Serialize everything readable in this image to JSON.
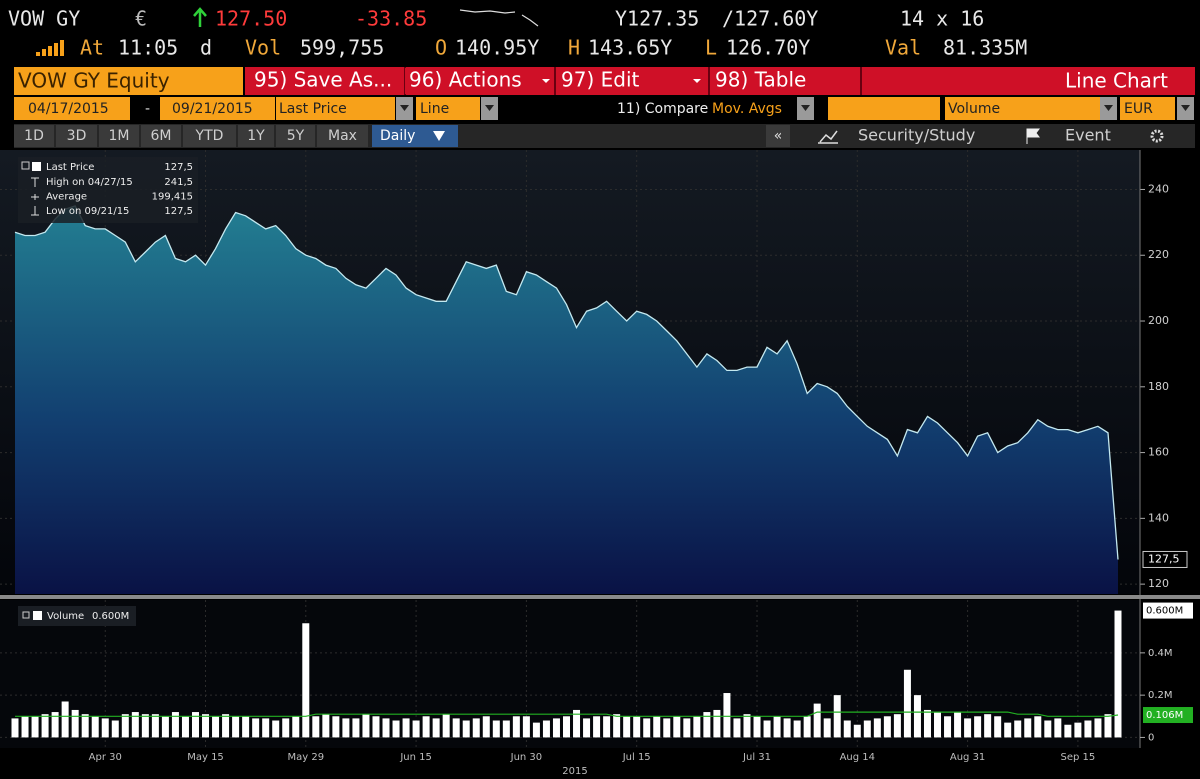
{
  "header": {
    "ticker": "VOW GY",
    "currency": "€",
    "last": "127.50",
    "change": "-33.85",
    "bid": "Y127.35",
    "ask": "/127.60Y",
    "size": "14 x 16",
    "time_label": "At",
    "time": "11:05",
    "time_suffix": "d",
    "vol_label": "Vol",
    "vol": "599,755",
    "open_label": "O",
    "open": "140.95Y",
    "high_label": "H",
    "high": "143.65Y",
    "low_label": "L",
    "low": "126.70Y",
    "val_label": "Val",
    "val": "81.335M"
  },
  "toolbar": {
    "security": "VOW GY Equity",
    "buttons": [
      "95) Save As...",
      "96) Actions",
      "97) Edit",
      "98) Table"
    ],
    "view": "Line Chart"
  },
  "settings": {
    "start": "04/17/2015",
    "dash": "-",
    "end": "09/21/2015",
    "field": "Last Price",
    "style": "Line",
    "compare": "11) Compare",
    "mov_avgs": "Mov. Avgs",
    "lower": "Volume",
    "currency": "EUR"
  },
  "periods": {
    "buttons": [
      "1D",
      "3D",
      "1M",
      "6M",
      "YTD",
      "1Y",
      "5Y",
      "Max"
    ],
    "frequency": "Daily",
    "collapse": "«",
    "study": "Security/Study",
    "event": "Event"
  },
  "chart_data": [
    {
      "type": "area",
      "series": [
        {
          "name": "Last Price",
          "color": "#c4e9f0",
          "last": "127,5",
          "values": [
            227,
            226,
            226,
            227,
            231,
            234,
            235,
            229,
            228,
            228,
            226,
            224,
            218,
            221,
            224,
            226,
            219,
            218,
            220,
            217,
            222,
            228,
            233,
            232,
            230,
            228,
            229,
            226,
            222,
            220,
            219,
            217,
            216,
            213,
            211,
            210,
            213,
            216,
            214,
            210,
            208,
            207,
            206,
            206,
            212,
            218,
            217,
            216,
            217,
            209,
            208,
            215,
            214,
            212,
            210,
            205,
            198,
            203,
            204,
            206,
            203,
            200,
            203,
            202,
            200,
            197,
            194,
            190,
            186,
            190,
            188,
            185,
            185,
            186,
            186,
            192,
            190,
            194,
            187,
            178,
            181,
            180,
            178,
            174,
            171,
            168,
            166,
            164,
            159,
            167,
            166,
            171,
            169,
            166,
            163,
            159,
            165,
            166,
            160,
            162,
            163,
            166,
            170,
            168,
            167,
            167,
            166,
            167,
            168,
            166,
            127.5
          ]
        }
      ],
      "stats": [
        {
          "label": "High on 04/27/15",
          "value": "241,5"
        },
        {
          "label": "Average",
          "value": "199,415"
        },
        {
          "label": "Low on 09/21/15",
          "value": "127,5"
        }
      ],
      "ylim": [
        117,
        252
      ],
      "yticks": [
        120,
        140,
        160,
        180,
        200,
        220,
        240
      ],
      "grid": true
    },
    {
      "type": "bar",
      "categories": [
        null,
        null,
        null,
        null,
        null,
        null,
        null,
        null,
        null,
        "Apr 30",
        null,
        null,
        null,
        null,
        null,
        null,
        null,
        null,
        null,
        "May 15",
        null,
        null,
        null,
        null,
        null,
        null,
        null,
        null,
        null,
        "May 29",
        null,
        null,
        null,
        null,
        null,
        null,
        null,
        null,
        null,
        null,
        "Jun 15",
        null,
        null,
        null,
        null,
        null,
        null,
        null,
        null,
        null,
        null,
        "Jun 30",
        null,
        null,
        null,
        null,
        null,
        null,
        null,
        null,
        null,
        null,
        "Jul 15",
        null,
        null,
        null,
        null,
        null,
        null,
        null,
        null,
        null,
        null,
        null,
        "Jul 31",
        null,
        null,
        null,
        null,
        null,
        null,
        null,
        null,
        null,
        "Aug 14",
        null,
        null,
        null,
        null,
        null,
        null,
        null,
        null,
        null,
        null,
        "Aug 31",
        null,
        null,
        null,
        null,
        null,
        null,
        null,
        null,
        null,
        null,
        "Sep 15",
        null,
        null,
        null,
        null
      ],
      "x_year": "2015",
      "series": [
        {
          "name": "Volume",
          "color": "#ffffff",
          "last": "0.600M",
          "values": [
            0.09,
            0.1,
            0.1,
            0.11,
            0.12,
            0.17,
            0.13,
            0.11,
            0.1,
            0.09,
            0.08,
            0.11,
            0.12,
            0.11,
            0.11,
            0.1,
            0.12,
            0.1,
            0.12,
            0.11,
            0.1,
            0.11,
            0.1,
            0.1,
            0.09,
            0.09,
            0.08,
            0.09,
            0.1,
            0.54,
            0.1,
            0.11,
            0.1,
            0.09,
            0.09,
            0.11,
            0.1,
            0.09,
            0.08,
            0.09,
            0.08,
            0.1,
            0.09,
            0.11,
            0.09,
            0.08,
            0.09,
            0.1,
            0.08,
            0.08,
            0.1,
            0.1,
            0.07,
            0.08,
            0.09,
            0.1,
            0.13,
            0.09,
            0.1,
            0.1,
            0.11,
            0.1,
            0.1,
            0.09,
            0.1,
            0.09,
            0.1,
            0.09,
            0.1,
            0.12,
            0.13,
            0.21,
            0.09,
            0.11,
            0.1,
            0.08,
            0.1,
            0.09,
            0.08,
            0.1,
            0.16,
            0.09,
            0.2,
            0.08,
            0.06,
            0.08,
            0.09,
            0.1,
            0.11,
            0.32,
            0.2,
            0.13,
            0.12,
            0.1,
            0.12,
            0.09,
            0.1,
            0.11,
            0.1,
            0.07,
            0.08,
            0.09,
            0.1,
            0.08,
            0.09,
            0.06,
            0.07,
            0.08,
            0.09,
            0.11,
            0.6
          ]
        },
        {
          "color": "#22b022",
          "last": "0.106M",
          "values": [
            0.1,
            0.1,
            0.1,
            0.1,
            0.1,
            0.1,
            0.1,
            0.1,
            0.1,
            0.1,
            0.1,
            0.1,
            0.1,
            0.1,
            0.1,
            0.1,
            0.1,
            0.1,
            0.1,
            0.1,
            0.1,
            0.1,
            0.1,
            0.1,
            0.1,
            0.1,
            0.1,
            0.1,
            0.1,
            0.1,
            0.11,
            0.11,
            0.11,
            0.11,
            0.11,
            0.11,
            0.11,
            0.11,
            0.11,
            0.11,
            0.11,
            0.11,
            0.11,
            0.11,
            0.11,
            0.11,
            0.11,
            0.11,
            0.11,
            0.11,
            0.11,
            0.11,
            0.11,
            0.11,
            0.11,
            0.11,
            0.11,
            0.11,
            0.11,
            0.11,
            0.1,
            0.1,
            0.1,
            0.1,
            0.1,
            0.1,
            0.1,
            0.1,
            0.1,
            0.1,
            0.1,
            0.1,
            0.1,
            0.1,
            0.1,
            0.1,
            0.1,
            0.1,
            0.1,
            0.1,
            0.12,
            0.12,
            0.12,
            0.12,
            0.12,
            0.12,
            0.12,
            0.12,
            0.12,
            0.12,
            0.12,
            0.12,
            0.12,
            0.12,
            0.12,
            0.12,
            0.12,
            0.12,
            0.12,
            0.12,
            0.11,
            0.11,
            0.11,
            0.1,
            0.1,
            0.1,
            0.1,
            0.1,
            0.1,
            0.1,
            0.106
          ]
        }
      ],
      "ylim": [
        -0.05,
        0.65
      ],
      "yticks": [
        0,
        {
          "value": 0.2,
          "label": "0.2M"
        },
        {
          "value": 0.4,
          "label": "0.4M"
        }
      ],
      "grid": true
    }
  ]
}
